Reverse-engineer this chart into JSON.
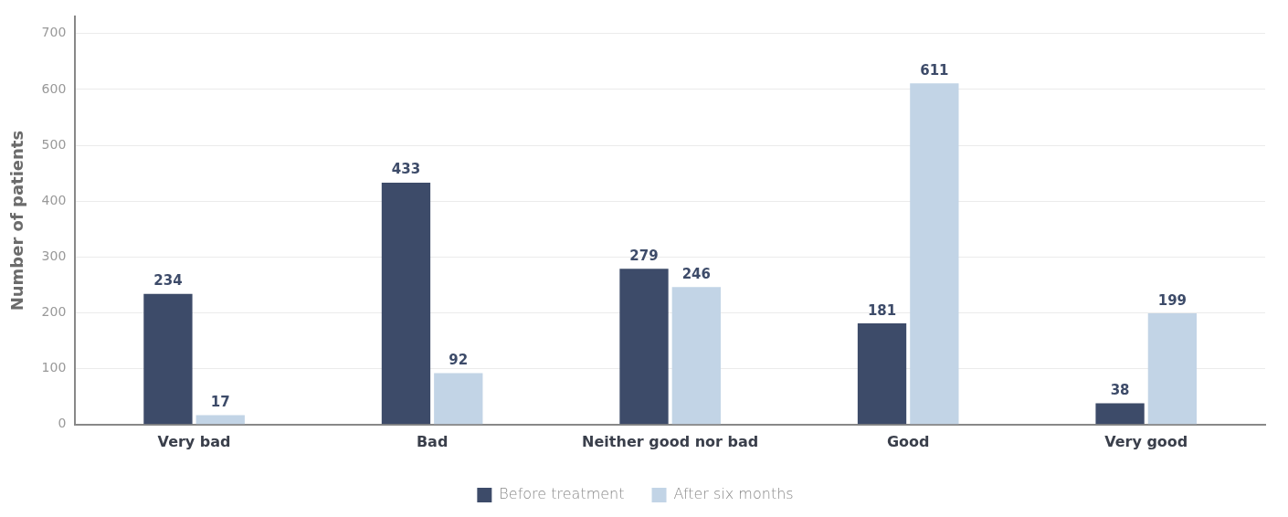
{
  "chart_data": {
    "type": "bar",
    "ylabel": "Number of patients",
    "categories": [
      "Very bad",
      "Bad",
      "Neither good nor bad",
      "Good",
      "Very good"
    ],
    "series": [
      {
        "name": "Before treatment",
        "color": "#3d4b69",
        "values": [
          234,
          433,
          279,
          181,
          38
        ]
      },
      {
        "name": "After six months",
        "color": "#c2d4e6",
        "values": [
          17,
          92,
          246,
          611,
          199
        ]
      }
    ],
    "ylim": [
      0,
      730
    ],
    "yticks": [
      0,
      100,
      200,
      300,
      400,
      500,
      600,
      700
    ],
    "grid": "y",
    "legend": "bottom",
    "data_labels": true
  }
}
